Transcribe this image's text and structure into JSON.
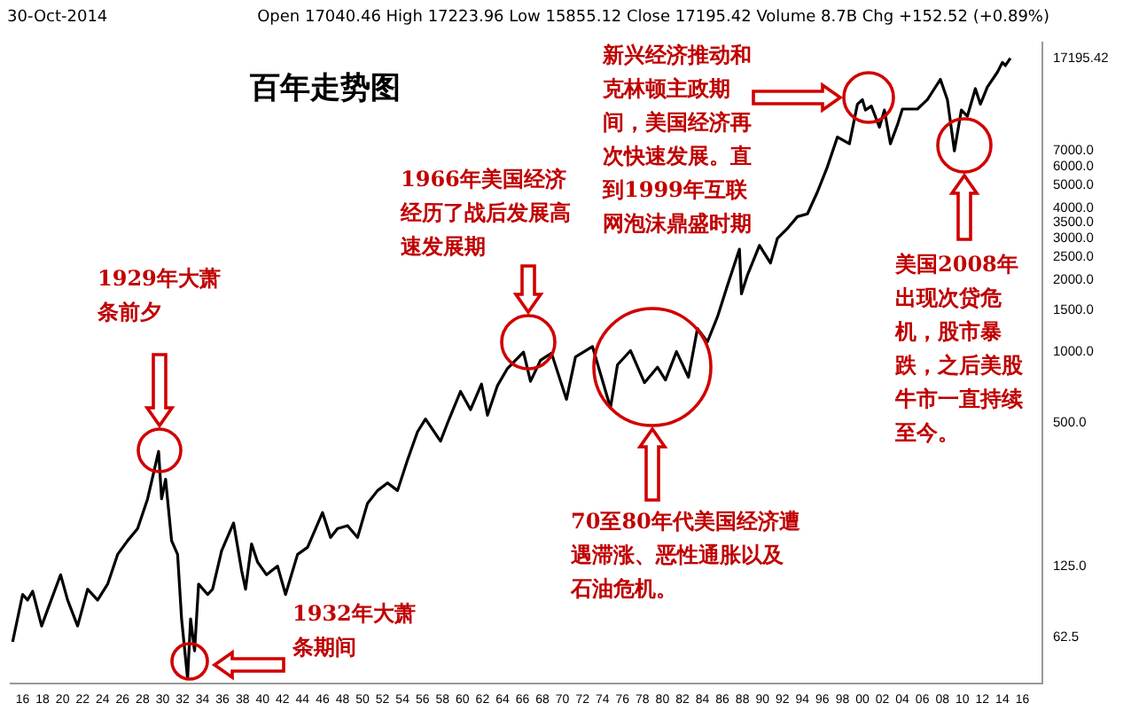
{
  "chart_data": {
    "type": "line",
    "title": "百年走势图",
    "x": [
      1915.0,
      1916.0,
      1916.5,
      1917.0,
      1917.9,
      1918.5,
      1919.8,
      1920.5,
      1921.5,
      1922.5,
      1923.5,
      1924.5,
      1925.5,
      1926.5,
      1927.5,
      1928.5,
      1929.6,
      1929.9,
      1930.3,
      1930.9,
      1931.5,
      1931.9,
      1932.5,
      1932.8,
      1933.2,
      1933.6,
      1934.5,
      1935.0,
      1935.9,
      1937.1,
      1937.9,
      1938.3,
      1938.9,
      1939.5,
      1940.4,
      1941.5,
      1942.3,
      1943.5,
      1944.5,
      1946.0,
      1946.8,
      1947.5,
      1948.5,
      1949.5,
      1950.5,
      1951.5,
      1952.5,
      1953.5,
      1954.5,
      1955.5,
      1956.3,
      1957.8,
      1958.5,
      1959.8,
      1960.8,
      1961.9,
      1962.5,
      1963.5,
      1964.5,
      1966.1,
      1966.8,
      1967.8,
      1968.9,
      1970.4,
      1971.3,
      1973.0,
      1974.8,
      1975.5,
      1976.8,
      1978.2,
      1979.5,
      1980.3,
      1981.4,
      1982.6,
      1983.5,
      1984.5,
      1985.5,
      1986.5,
      1987.7,
      1987.9,
      1988.5,
      1989.7,
      1990.8,
      1991.5,
      1992.5,
      1993.5,
      1994.5,
      1995.5,
      1996.5,
      1997.5,
      1998.7,
      1999.5,
      2000.0,
      2000.3,
      2000.9,
      2001.7,
      2002.2,
      2002.8,
      2003.5,
      2004.0,
      2005.5,
      2006.5,
      2007.8,
      2008.5,
      2009.2,
      2009.9,
      2010.5,
      2011.3,
      2011.8,
      2012.5,
      2013.5,
      2014.0,
      2014.3,
      2014.8
    ],
    "series": [
      {
        "color": "#000000",
        "values": [
          60,
          95,
          90,
          98,
          70,
          82,
          115,
          90,
          70,
          100,
          90,
          105,
          140,
          160,
          180,
          240,
          380,
          240,
          290,
          160,
          140,
          75,
          42,
          75,
          55,
          105,
          95,
          100,
          145,
          190,
          120,
          100,
          155,
          130,
          115,
          125,
          95,
          140,
          150,
          210,
          165,
          180,
          185,
          165,
          230,
          260,
          280,
          260,
          350,
          460,
          520,
          420,
          500,
          680,
          570,
          730,
          540,
          720,
          850,
          995,
          750,
          920,
          985,
          630,
          950,
          1050,
          580,
          880,
          1010,
          740,
          860,
          760,
          1000,
          780,
          1250,
          1100,
          1400,
          1900,
          2700,
          1750,
          2100,
          2800,
          2360,
          3000,
          3300,
          3700,
          3800,
          4700,
          6000,
          8000,
          7500,
          11000,
          11500,
          10400,
          10800,
          8800,
          10400,
          7500,
          9000,
          10500,
          10500,
          11500,
          14000,
          11500,
          7000,
          10400,
          9800,
          12800,
          11000,
          13000,
          15000,
          16500,
          16000,
          17195.42
        ]
      }
    ],
    "xlim": [
      1914.8,
      2018
    ],
    "xticks": [
      {
        "value": 1916,
        "label": "16"
      },
      {
        "value": 1918,
        "label": "18"
      },
      {
        "value": 1920,
        "label": "20"
      },
      {
        "value": 1922,
        "label": "22"
      },
      {
        "value": 1924,
        "label": "24"
      },
      {
        "value": 1926,
        "label": "26"
      },
      {
        "value": 1928,
        "label": "28"
      },
      {
        "value": 1930,
        "label": "30"
      },
      {
        "value": 1932,
        "label": "32"
      },
      {
        "value": 1934,
        "label": "34"
      },
      {
        "value": 1936,
        "label": "36"
      },
      {
        "value": 1938,
        "label": "38"
      },
      {
        "value": 1940,
        "label": "40"
      },
      {
        "value": 1942,
        "label": "42"
      },
      {
        "value": 1944,
        "label": "44"
      },
      {
        "value": 1946,
        "label": "46"
      },
      {
        "value": 1948,
        "label": "48"
      },
      {
        "value": 1950,
        "label": "50"
      },
      {
        "value": 1952,
        "label": "52"
      },
      {
        "value": 1954,
        "label": "54"
      },
      {
        "value": 1956,
        "label": "56"
      },
      {
        "value": 1958,
        "label": "58"
      },
      {
        "value": 1960,
        "label": "60"
      },
      {
        "value": 1962,
        "label": "62"
      },
      {
        "value": 1964,
        "label": "64"
      },
      {
        "value": 1966,
        "label": "66"
      },
      {
        "value": 1968,
        "label": "68"
      },
      {
        "value": 1970,
        "label": "70"
      },
      {
        "value": 1972,
        "label": "72"
      },
      {
        "value": 1974,
        "label": "74"
      },
      {
        "value": 1976,
        "label": "76"
      },
      {
        "value": 1978,
        "label": "78"
      },
      {
        "value": 1980,
        "label": "80"
      },
      {
        "value": 1982,
        "label": "82"
      },
      {
        "value": 1984,
        "label": "84"
      },
      {
        "value": 1986,
        "label": "86"
      },
      {
        "value": 1988,
        "label": "88"
      },
      {
        "value": 1990,
        "label": "90"
      },
      {
        "value": 1992,
        "label": "92"
      },
      {
        "value": 1994,
        "label": "94"
      },
      {
        "value": 1996,
        "label": "96"
      },
      {
        "value": 1998,
        "label": "98"
      },
      {
        "value": 2000,
        "label": "00"
      },
      {
        "value": 2002,
        "label": "02"
      },
      {
        "value": 2004,
        "label": "04"
      },
      {
        "value": 2006,
        "label": "06"
      },
      {
        "value": 2008,
        "label": "08"
      },
      {
        "value": 2010,
        "label": "10"
      },
      {
        "value": 2012,
        "label": "12"
      },
      {
        "value": 2014,
        "label": "14"
      },
      {
        "value": 2016,
        "label": "16"
      }
    ],
    "ylim": [
      40,
      20000
    ],
    "yticks": [
      {
        "value": 62.5,
        "label": "62.5"
      },
      {
        "value": 125,
        "label": "125.0"
      },
      {
        "value": 500,
        "label": "500.0"
      },
      {
        "value": 1000,
        "label": "1000.0"
      },
      {
        "value": 1500,
        "label": "1500.0"
      },
      {
        "value": 2000,
        "label": "2000.0"
      },
      {
        "value": 2500,
        "label": "2500.0"
      },
      {
        "value": 3000,
        "label": "3000.0"
      },
      {
        "value": 3500,
        "label": "3500.0"
      },
      {
        "value": 4000,
        "label": "4000.0"
      },
      {
        "value": 5000,
        "label": "5000.0"
      },
      {
        "value": 6000,
        "label": "6000.0"
      },
      {
        "value": 7000,
        "label": "7000.0"
      },
      {
        "value": 17195.42,
        "label": "17195.42"
      }
    ],
    "log": "y",
    "grid": false,
    "legend": false,
    "marker": "none",
    "line_style": "solid",
    "annotations": [
      "30-Oct-2014",
      "Open 17040.46  High 17223.96  Low 15855.12  Close 17195.42  Volume 8.7B  Chg +152.52 (+0.89%)",
      "1929年大萧条前夕",
      "1932年大萧条期间",
      "1966年美国经济经历了战后发展高速发展期",
      "70至80年代美国经济遭遇滞涨、恶性通胀以及石油危机。",
      "新兴经济推动和克林顿主政期间，美国经济再次快速发展。直到1999年互联网泡沫鼎盛时期",
      "美国2008年出现次贷危机，股市暴跌，之后美股牛市一直持续至今。"
    ]
  }
}
